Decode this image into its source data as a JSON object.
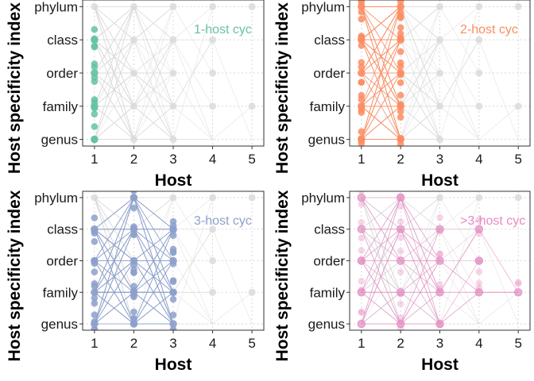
{
  "chart_data": [
    {
      "type": "line",
      "panel_label": "1-host cyc",
      "highlight_color": "#66C2A5",
      "highlight_hosts": [
        1
      ],
      "xlabel": "Host",
      "ylabel": "Host specificity index",
      "x_ticks": [
        "1",
        "2",
        "3",
        "4",
        "5"
      ],
      "y_ticks": [
        "genus",
        "family",
        "order",
        "class",
        "phylum"
      ],
      "xlim": [
        0.7,
        5.3
      ],
      "ylim": [
        0.8,
        5.2
      ],
      "grid": true,
      "highlight_points": [
        {
          "host": 1,
          "level": "genus"
        },
        {
          "host": 1,
          "level": "family"
        },
        {
          "host": 1,
          "level": "order"
        },
        {
          "host": 1,
          "level": "class"
        }
      ]
    },
    {
      "type": "line",
      "panel_label": "2-host cyc",
      "highlight_color": "#FC8D62",
      "highlight_hosts": [
        1,
        2
      ],
      "xlabel": "Host",
      "ylabel": "Host specificity index",
      "x_ticks": [
        "1",
        "2",
        "3",
        "4",
        "5"
      ],
      "y_ticks": [
        "genus",
        "family",
        "order",
        "class",
        "phylum"
      ],
      "xlim": [
        0.7,
        5.3
      ],
      "ylim": [
        0.8,
        5.2
      ],
      "grid": true,
      "highlight_points": [
        {
          "host": 1,
          "level": "genus"
        },
        {
          "host": 1,
          "level": "family"
        },
        {
          "host": 1,
          "level": "order"
        },
        {
          "host": 1,
          "level": "class"
        },
        {
          "host": 1,
          "level": "phylum"
        },
        {
          "host": 2,
          "level": "genus"
        },
        {
          "host": 2,
          "level": "family"
        },
        {
          "host": 2,
          "level": "order"
        },
        {
          "host": 2,
          "level": "class"
        },
        {
          "host": 2,
          "level": "phylum"
        }
      ]
    },
    {
      "type": "line",
      "panel_label": "3-host cyc",
      "highlight_color": "#8DA0CB",
      "highlight_hosts": [
        1,
        2,
        3
      ],
      "xlabel": "Host",
      "ylabel": "Host specificity index",
      "x_ticks": [
        "1",
        "2",
        "3",
        "4",
        "5"
      ],
      "y_ticks": [
        "genus",
        "family",
        "order",
        "class",
        "phylum"
      ],
      "xlim": [
        0.7,
        5.3
      ],
      "ylim": [
        0.8,
        5.2
      ],
      "grid": true,
      "highlight_points": [
        {
          "host": 1,
          "level": "genus"
        },
        {
          "host": 1,
          "level": "family"
        },
        {
          "host": 1,
          "level": "order"
        },
        {
          "host": 1,
          "level": "class"
        },
        {
          "host": 2,
          "level": "genus"
        },
        {
          "host": 2,
          "level": "family"
        },
        {
          "host": 2,
          "level": "order"
        },
        {
          "host": 2,
          "level": "class"
        },
        {
          "host": 2,
          "level": "phylum"
        },
        {
          "host": 3,
          "level": "genus"
        },
        {
          "host": 3,
          "level": "family"
        },
        {
          "host": 3,
          "level": "order"
        },
        {
          "host": 3,
          "level": "class"
        }
      ]
    },
    {
      "type": "line",
      "panel_label": ">3-host cyc",
      "highlight_color": "#E78AC3",
      "highlight_hosts": [
        1,
        2,
        3,
        4,
        5
      ],
      "xlabel": "Host",
      "ylabel": "Host specificity index",
      "x_ticks": [
        "1",
        "2",
        "3",
        "4",
        "5"
      ],
      "y_ticks": [
        "genus",
        "family",
        "order",
        "class",
        "phylum"
      ],
      "xlim": [
        0.7,
        5.3
      ],
      "ylim": [
        0.8,
        5.2
      ],
      "grid": true,
      "highlight_points": [
        {
          "host": 1,
          "level": "genus"
        },
        {
          "host": 1,
          "level": "family"
        },
        {
          "host": 1,
          "level": "order"
        },
        {
          "host": 1,
          "level": "class"
        },
        {
          "host": 1,
          "level": "phylum"
        },
        {
          "host": 2,
          "level": "genus"
        },
        {
          "host": 2,
          "level": "family"
        },
        {
          "host": 2,
          "level": "order"
        },
        {
          "host": 2,
          "level": "class"
        },
        {
          "host": 2,
          "level": "phylum"
        },
        {
          "host": 3,
          "level": "genus"
        },
        {
          "host": 3,
          "level": "family"
        },
        {
          "host": 3,
          "level": "order"
        },
        {
          "host": 3,
          "level": "class"
        },
        {
          "host": 4,
          "level": "family"
        },
        {
          "host": 4,
          "level": "order"
        },
        {
          "host": 4,
          "level": "class"
        },
        {
          "host": 5,
          "level": "family"
        }
      ]
    }
  ],
  "colors": {
    "background_points": "#d9d9d9",
    "background_lines": "#dcdcdc",
    "grid": "#cfcfcf",
    "axis": "#333333"
  }
}
